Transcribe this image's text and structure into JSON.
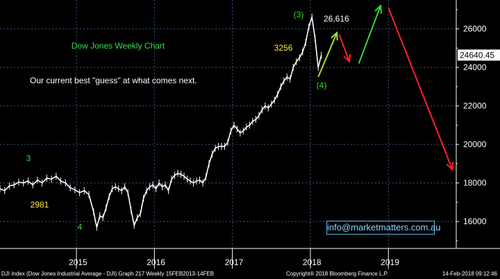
{
  "chart_data": {
    "type": "line",
    "title": "Dow Jones Weekly Chart",
    "subtitle": "Our current best \"guess\" at what comes next.",
    "x_labels": [
      "2015",
      "2016",
      "2017",
      "2018",
      "2019"
    ],
    "y_ticks": [
      16000,
      18000,
      20000,
      22000,
      24000,
      26000
    ],
    "ylim": [
      14600,
      27500
    ],
    "last_price_label": "24640.45",
    "series": [
      {
        "values": [
          [
            2014.0,
            17700
          ],
          [
            2014.06,
            17600
          ],
          [
            2014.12,
            17850
          ],
          [
            2014.18,
            17900
          ],
          [
            2014.24,
            18050
          ],
          [
            2014.3,
            18000
          ],
          [
            2014.36,
            18100
          ],
          [
            2014.42,
            17900
          ],
          [
            2014.48,
            18150
          ],
          [
            2014.54,
            18000
          ],
          [
            2014.6,
            18250
          ],
          [
            2014.66,
            18200
          ],
          [
            2014.72,
            18350
          ],
          [
            2014.78,
            18100
          ],
          [
            2014.84,
            18000
          ],
          [
            2014.9,
            17750
          ],
          [
            2014.96,
            17650
          ],
          [
            2015.02,
            17500
          ],
          [
            2015.08,
            17600
          ],
          [
            2015.14,
            17400
          ],
          [
            2015.2,
            16500
          ],
          [
            2015.24,
            15700
          ],
          [
            2015.28,
            16300
          ],
          [
            2015.32,
            16200
          ],
          [
            2015.36,
            16700
          ],
          [
            2015.4,
            17300
          ],
          [
            2015.44,
            17700
          ],
          [
            2015.48,
            17800
          ],
          [
            2015.52,
            17700
          ],
          [
            2015.56,
            17600
          ],
          [
            2015.6,
            17800
          ],
          [
            2015.64,
            17500
          ],
          [
            2015.68,
            16600
          ],
          [
            2015.72,
            15800
          ],
          [
            2015.76,
            16200
          ],
          [
            2015.8,
            16400
          ],
          [
            2015.84,
            17200
          ],
          [
            2015.88,
            17600
          ],
          [
            2015.92,
            17800
          ],
          [
            2015.96,
            17900
          ],
          [
            2016.0,
            17700
          ],
          [
            2016.04,
            18000
          ],
          [
            2016.08,
            17800
          ],
          [
            2016.12,
            17900
          ],
          [
            2016.16,
            17600
          ],
          [
            2016.2,
            18200
          ],
          [
            2016.24,
            18400
          ],
          [
            2016.28,
            18500
          ],
          [
            2016.32,
            18450
          ],
          [
            2016.36,
            18350
          ],
          [
            2016.4,
            18200
          ],
          [
            2016.44,
            18100
          ],
          [
            2016.48,
            18000
          ],
          [
            2016.52,
            18100
          ],
          [
            2016.56,
            18150
          ],
          [
            2016.6,
            18000
          ],
          [
            2016.64,
            18300
          ],
          [
            2016.68,
            19000
          ],
          [
            2016.72,
            19500
          ],
          [
            2016.76,
            19800
          ],
          [
            2016.8,
            19900
          ],
          [
            2016.84,
            19900
          ],
          [
            2016.88,
            19900
          ],
          [
            2016.92,
            20100
          ],
          [
            2016.96,
            20700
          ],
          [
            2017.0,
            21000
          ],
          [
            2017.04,
            20800
          ],
          [
            2017.08,
            20600
          ],
          [
            2017.12,
            20700
          ],
          [
            2017.16,
            20900
          ],
          [
            2017.2,
            21000
          ],
          [
            2017.24,
            21200
          ],
          [
            2017.28,
            21300
          ],
          [
            2017.32,
            21500
          ],
          [
            2017.36,
            21800
          ],
          [
            2017.4,
            22000
          ],
          [
            2017.44,
            21900
          ],
          [
            2017.48,
            22100
          ],
          [
            2017.52,
            22300
          ],
          [
            2017.56,
            22600
          ],
          [
            2017.6,
            23000
          ],
          [
            2017.64,
            23300
          ],
          [
            2017.68,
            23500
          ],
          [
            2017.72,
            23400
          ],
          [
            2017.76,
            24000
          ],
          [
            2017.8,
            24300
          ],
          [
            2017.84,
            24500
          ],
          [
            2017.88,
            24800
          ],
          [
            2017.92,
            25300
          ],
          [
            2017.96,
            26100
          ],
          [
            2018.0,
            26616
          ],
          [
            2018.04,
            25500
          ],
          [
            2018.08,
            24000
          ],
          [
            2018.12,
            24640
          ]
        ]
      }
    ],
    "projection_arrows": [
      {
        "color": "#aadd33",
        "from": [
          2018.08,
          23500
        ],
        "to": [
          2018.32,
          25800
        ]
      },
      {
        "color": "#ff2030",
        "from": [
          2018.35,
          25700
        ],
        "to": [
          2018.48,
          24300
        ]
      },
      {
        "color": "#33dd33",
        "from": [
          2018.6,
          24200
        ],
        "to": [
          2018.88,
          27200
        ]
      },
      {
        "color": "#ff2030",
        "from": [
          2018.98,
          27100
        ],
        "to": [
          2019.8,
          18700
        ]
      }
    ]
  },
  "annotations": {
    "wave3_top": "(3)",
    "top_value": "26,616",
    "wave4": "(4)",
    "pts_3256": "3256",
    "label_3": "3",
    "label_2981": "2981",
    "label_4": "4"
  },
  "contact_link": "info@marketmatters.com.au",
  "footer": {
    "left": "DJI Index (Dow Jones Industrial Average - DJI) Graph 217  Weekly 15FEB2013-14FEB",
    "center": "Copyright® 2018 Bloomberg Finance L.P.",
    "right": "14-Feb-2018 09:12:46"
  },
  "colors": {
    "background": "#000000",
    "price_line": "#ffffff",
    "grid": "#3a5a8a",
    "title_green": "#33dd55",
    "label_yellow": "#ffee33",
    "up_arrow_lime": "#aadd33",
    "up_arrow_green": "#33dd33",
    "down_arrow_red": "#ff2030"
  }
}
